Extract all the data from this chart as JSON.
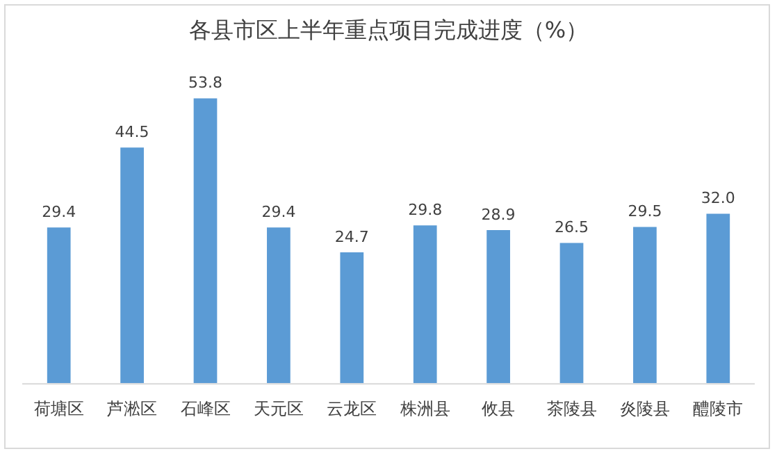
{
  "chart_data": {
    "type": "bar",
    "title": "各县市区上半年重点项目完成进度（%）",
    "categories": [
      "荷塘区",
      "芦淞区",
      "石峰区",
      "天元区",
      "云龙区",
      "株洲县",
      "攸县",
      "茶陵县",
      "炎陵县",
      "醴陵市"
    ],
    "values": [
      29.4,
      44.5,
      53.8,
      29.4,
      24.7,
      29.8,
      28.9,
      26.5,
      29.5,
      32.0
    ],
    "value_labels": [
      "29.4",
      "44.5",
      "53.8",
      "29.4",
      "24.7",
      "29.8",
      "28.9",
      "26.5",
      "29.5",
      "32.0"
    ],
    "color": "#5b9bd5",
    "tick_labels": "x",
    "grid": false,
    "legend": false
  }
}
